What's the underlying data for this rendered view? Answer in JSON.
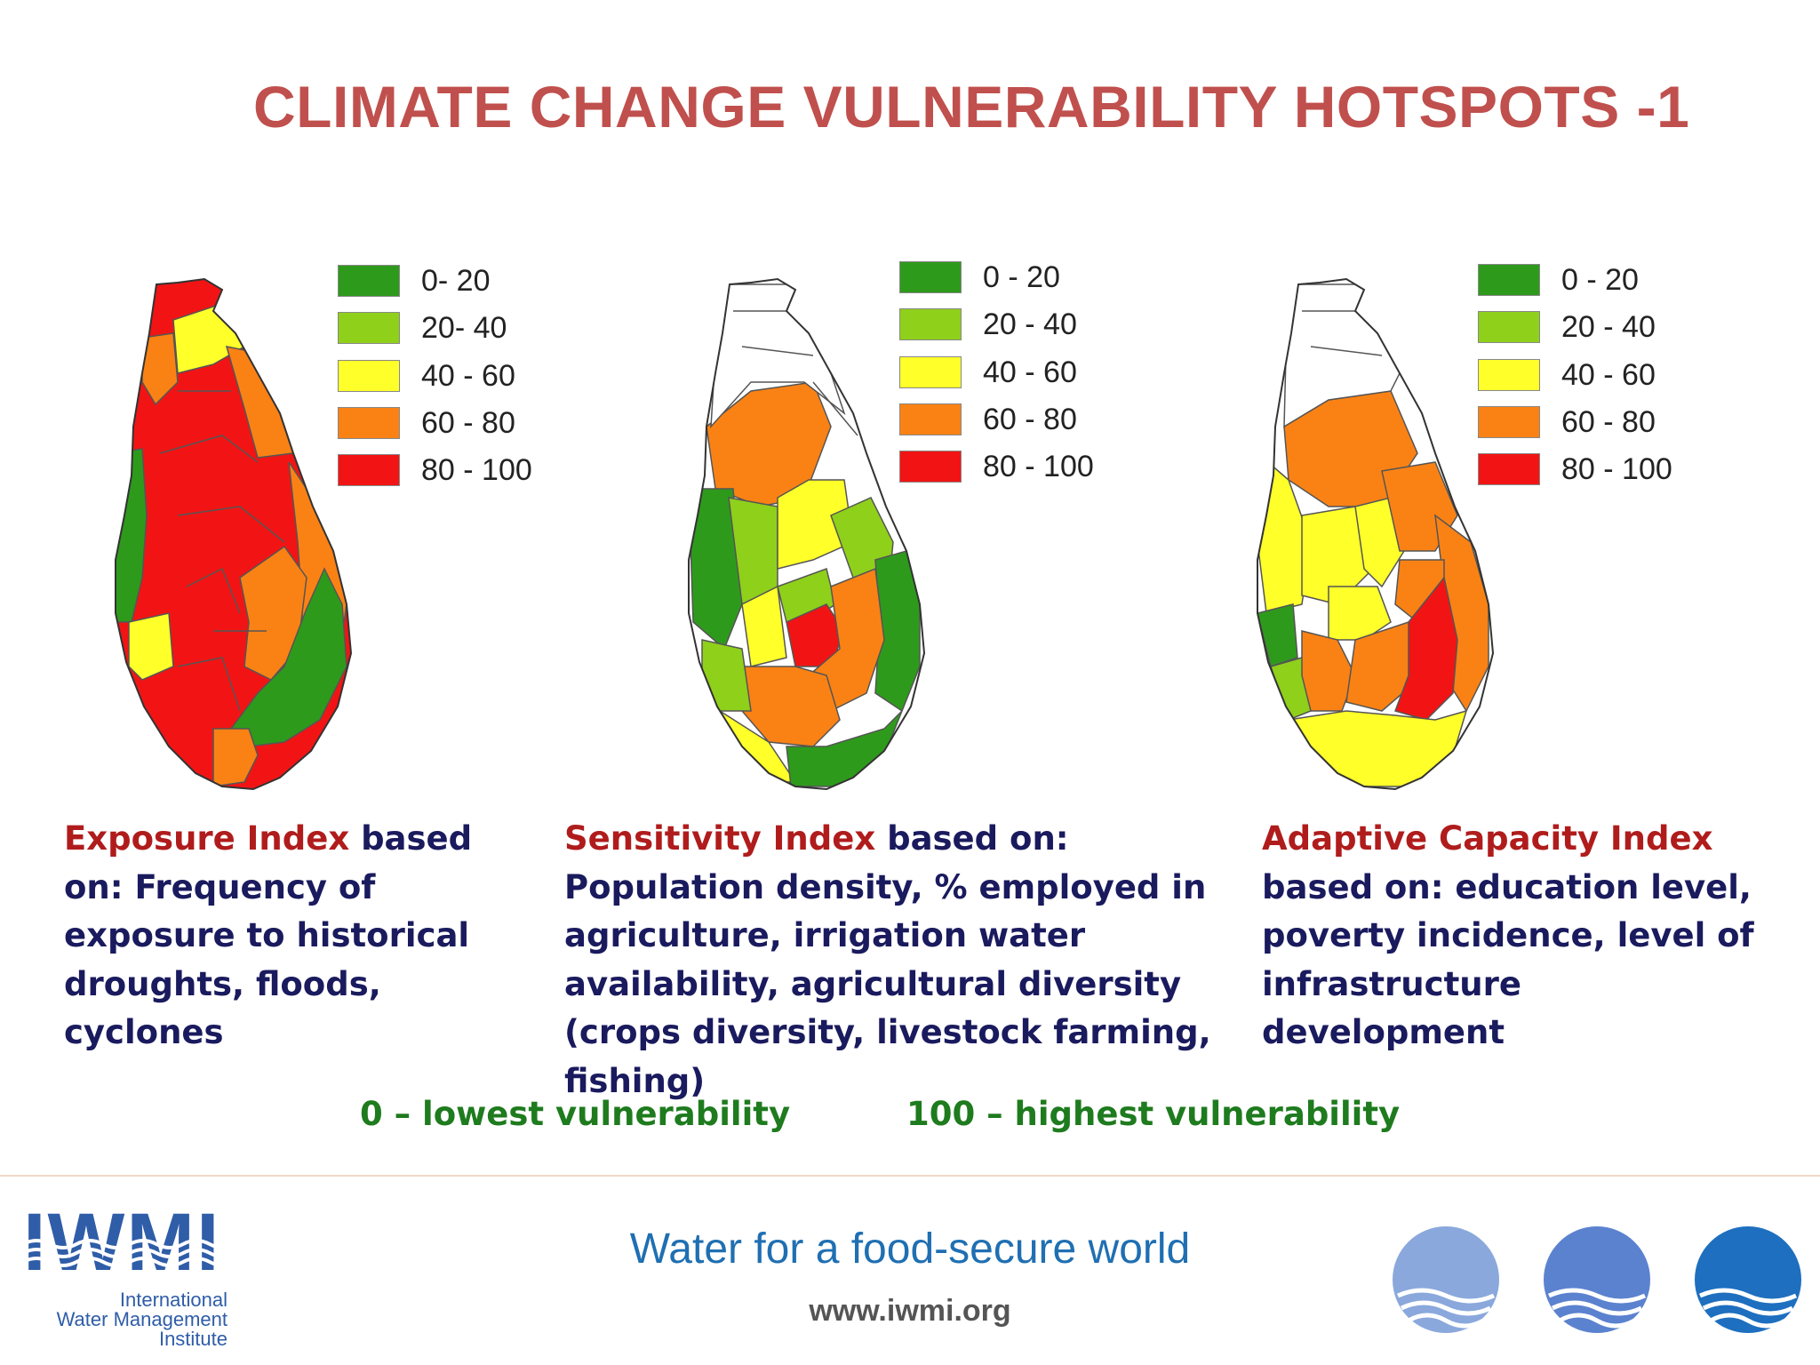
{
  "title": "CLIMATE CHANGE VULNERABILITY HOTSPOTS -1",
  "colors": {
    "title": "#c0504d",
    "highlight": "#b01c1c",
    "body_text": "#1a1a5e",
    "scale_text": "#1e7b1e",
    "class_0_20": "#2e9a1c",
    "class_20_40": "#8fd01a",
    "class_40_60": "#ffff2a",
    "class_60_80": "#fa8214",
    "class_80_100": "#f21414",
    "tagline": "#1f6fb2"
  },
  "maps": [
    {
      "legend": [
        "0- 20",
        "20- 40",
        "40 - 60",
        "60 - 80",
        "80 - 100"
      ],
      "description": {
        "index_name": "Exposure Index",
        "text": " based on: Frequency of exposure to historical droughts, floods, cyclones"
      }
    },
    {
      "legend": [
        "0 - 20",
        "20 - 40",
        "40 - 60",
        "60 - 80",
        "80 - 100"
      ],
      "description": {
        "index_name": "Sensitivity Index",
        "text": " based on: Population density, % employed in agriculture, irrigation water availability, agricultural diversity (crops diversity, livestock farming, fishing)"
      }
    },
    {
      "legend": [
        "0 - 20",
        "20 - 40",
        "40 - 60",
        "60 - 80",
        "80 - 100"
      ],
      "description": {
        "index_name": "Adaptive Capacity Index",
        "text": " based on: education level, poverty incidence, level of infrastructure development"
      }
    }
  ],
  "scale": {
    "low": "0 – lowest vulnerability",
    "high": "100 – highest vulnerability"
  },
  "footer": {
    "logo_text": "IWMI",
    "logo_subtitle_1": "International",
    "logo_subtitle_2": "Water Management",
    "logo_subtitle_3": "Institute",
    "tagline": "Water for a food-secure world",
    "website": "www.iwmi.org"
  }
}
